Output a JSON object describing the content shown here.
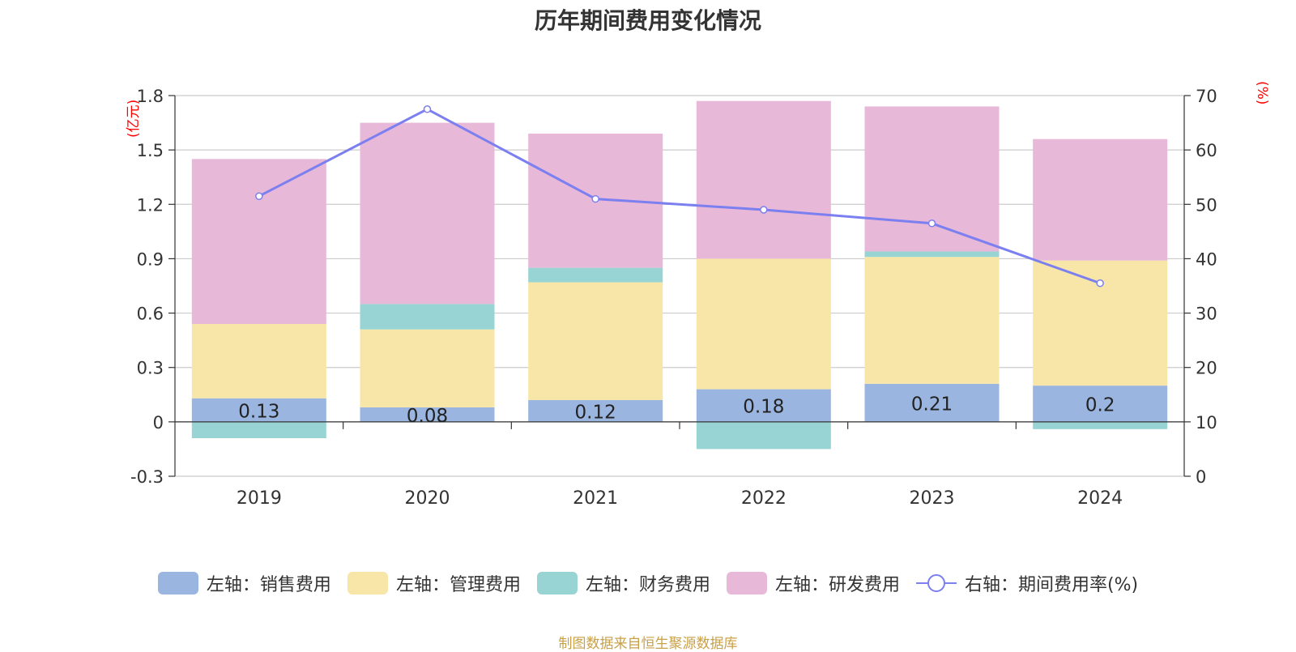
{
  "chart_data": {
    "type": "bar",
    "title": "历年期间费用变化情况",
    "categories": [
      "2019",
      "2020",
      "2021",
      "2022",
      "2023",
      "2024"
    ],
    "left_axis": {
      "unit": "(亿元)",
      "min": -0.3,
      "max": 1.8,
      "ticks": [
        "1.8",
        "1.5",
        "1.2",
        "0.9",
        "0.6",
        "0.3",
        "0",
        "-0.3"
      ]
    },
    "right_axis": {
      "unit": "(%)",
      "min": 0,
      "max": 70,
      "ticks": [
        "70",
        "60",
        "50",
        "40",
        "30",
        "20",
        "10",
        "0"
      ]
    },
    "series": [
      {
        "name": "左轴：销售费用",
        "color": "#9ab6e0",
        "values": [
          0.13,
          0.08,
          0.12,
          0.18,
          0.21,
          0.2
        ],
        "labels": [
          "0.13",
          "0.08",
          "0.12",
          "0.18",
          "0.21",
          "0.2"
        ]
      },
      {
        "name": "左轴：管理费用",
        "color": "#f8e6a8",
        "values": [
          0.41,
          0.43,
          0.65,
          0.72,
          0.7,
          0.69
        ]
      },
      {
        "name": "左轴：财务费用",
        "color": "#98d4d4",
        "values": [
          -0.09,
          0.14,
          0.08,
          -0.15,
          0.03,
          -0.04
        ]
      },
      {
        "name": "左轴：研发费用",
        "color": "#e8b8d8",
        "values": [
          0.91,
          1.0,
          0.74,
          0.87,
          0.8,
          0.67
        ]
      }
    ],
    "line_series": {
      "name": "右轴：期间费用率(%)",
      "color": "#7b7ff0",
      "values": [
        51.5,
        67.5,
        51.0,
        49.0,
        46.5,
        35.5
      ]
    }
  },
  "source_text": "制图数据来自恒生聚源数据库"
}
